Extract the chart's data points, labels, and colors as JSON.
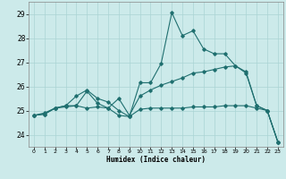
{
  "xlabel": "Humidex (Indice chaleur)",
  "xlim": [
    -0.5,
    23.5
  ],
  "ylim": [
    23.5,
    29.5
  ],
  "yticks": [
    24,
    25,
    26,
    27,
    28,
    29
  ],
  "xticks": [
    0,
    1,
    2,
    3,
    4,
    5,
    6,
    7,
    8,
    9,
    10,
    11,
    12,
    13,
    14,
    15,
    16,
    17,
    18,
    19,
    20,
    21,
    22,
    23
  ],
  "bg_color": "#cceaea",
  "line_color": "#1f6f6f",
  "grid_color": "#aad4d4",
  "line1_y": [
    24.8,
    24.85,
    25.1,
    25.2,
    25.6,
    25.85,
    25.5,
    25.35,
    25.0,
    24.75,
    26.15,
    26.15,
    26.95,
    29.05,
    28.1,
    28.3,
    27.55,
    27.35,
    27.35,
    26.85,
    26.6,
    25.2,
    25.0,
    23.7
  ],
  "line2_y": [
    24.8,
    24.9,
    25.1,
    25.2,
    25.2,
    25.8,
    25.3,
    25.1,
    24.8,
    24.75,
    25.05,
    25.1,
    25.1,
    25.1,
    25.1,
    25.15,
    25.15,
    25.15,
    25.2,
    25.2,
    25.2,
    25.1,
    25.0,
    23.7
  ],
  "line3_y": [
    24.8,
    24.85,
    25.1,
    25.15,
    25.2,
    25.1,
    25.15,
    25.1,
    25.5,
    24.8,
    25.6,
    25.85,
    26.05,
    26.2,
    26.35,
    26.55,
    26.6,
    26.7,
    26.8,
    26.85,
    26.55,
    25.2,
    25.0,
    23.7
  ]
}
